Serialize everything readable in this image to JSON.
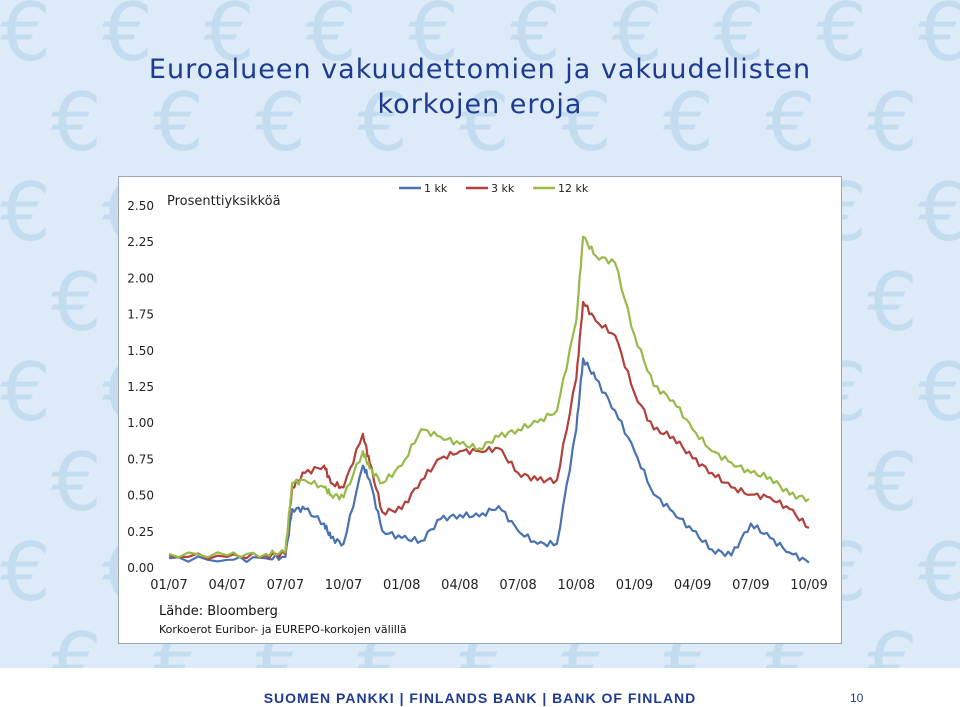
{
  "slide": {
    "title_line1": "Euroalueen vakuudettomien ja vakuudellisten",
    "title_line2": "korkojen eroja"
  },
  "background": {
    "symbol": "€",
    "symbol_color": "#c3dcf0"
  },
  "chart_data": {
    "type": "line",
    "title": "",
    "ylabel": "Prosenttiyksikköä",
    "xlabel": "",
    "ylim": [
      0.0,
      2.5
    ],
    "y_ticks": [
      "0.00",
      "0.25",
      "0.50",
      "0.75",
      "1.00",
      "1.25",
      "1.50",
      "1.75",
      "2.00",
      "2.25",
      "2.50"
    ],
    "x_ticks": [
      "01/07",
      "04/07",
      "07/07",
      "10/07",
      "01/08",
      "04/08",
      "07/08",
      "10/08",
      "01/09",
      "04/09",
      "07/09",
      "10/09"
    ],
    "grid": false,
    "legend_position": "top-right",
    "series": [
      {
        "name": "1 kk",
        "color": "#4a72b0",
        "points": [
          [
            "01/07",
            0.06
          ],
          [
            "04/07",
            0.05
          ],
          [
            "06/07",
            0.06
          ],
          [
            "07/07",
            0.07
          ],
          [
            "07/07b",
            0.4
          ],
          [
            "08/07",
            0.4
          ],
          [
            "09/07",
            0.3
          ],
          [
            "09/07b",
            0.2
          ],
          [
            "10/07",
            0.16
          ],
          [
            "11/07",
            0.7
          ],
          [
            "11/07b",
            0.6
          ],
          [
            "12/07",
            0.25
          ],
          [
            "01/08",
            0.2
          ],
          [
            "02/08",
            0.18
          ],
          [
            "03/08",
            0.33
          ],
          [
            "04/08",
            0.36
          ],
          [
            "05/08",
            0.35
          ],
          [
            "06/08",
            0.42
          ],
          [
            "07/08",
            0.25
          ],
          [
            "08/08",
            0.16
          ],
          [
            "09/08",
            0.16
          ],
          [
            "10/08",
            0.95
          ],
          [
            "10/08b",
            1.44
          ],
          [
            "11/08",
            1.3
          ],
          [
            "12/08",
            1.08
          ],
          [
            "01/09",
            0.8
          ],
          [
            "02/09",
            0.5
          ],
          [
            "03/09",
            0.38
          ],
          [
            "04/09",
            0.25
          ],
          [
            "05/09",
            0.12
          ],
          [
            "06/09",
            0.08
          ],
          [
            "07/09",
            0.3
          ],
          [
            "08/09",
            0.2
          ],
          [
            "09/09",
            0.1
          ],
          [
            "10/09",
            0.03
          ]
        ]
      },
      {
        "name": "3 kk",
        "color": "#b2403b",
        "points": [
          [
            "01/07",
            0.08
          ],
          [
            "04/07",
            0.07
          ],
          [
            "06/07",
            0.08
          ],
          [
            "07/07",
            0.09
          ],
          [
            "07/07b",
            0.55
          ],
          [
            "08/07",
            0.65
          ],
          [
            "09/07",
            0.7
          ],
          [
            "09/07b",
            0.58
          ],
          [
            "10/07",
            0.55
          ],
          [
            "11/07",
            0.92
          ],
          [
            "11/07b",
            0.72
          ],
          [
            "12/07",
            0.38
          ],
          [
            "01/08",
            0.4
          ],
          [
            "02/08",
            0.6
          ],
          [
            "03/08",
            0.75
          ],
          [
            "04/08",
            0.8
          ],
          [
            "05/08",
            0.8
          ],
          [
            "06/08",
            0.82
          ],
          [
            "07/08",
            0.65
          ],
          [
            "08/08",
            0.6
          ],
          [
            "09/08",
            0.6
          ],
          [
            "10/08",
            1.3
          ],
          [
            "10/08b",
            1.83
          ],
          [
            "11/08",
            1.7
          ],
          [
            "12/08",
            1.6
          ],
          [
            "01/09",
            1.2
          ],
          [
            "02/09",
            0.95
          ],
          [
            "03/09",
            0.9
          ],
          [
            "04/09",
            0.75
          ],
          [
            "05/09",
            0.65
          ],
          [
            "06/09",
            0.55
          ],
          [
            "07/09",
            0.5
          ],
          [
            "08/09",
            0.48
          ],
          [
            "09/09",
            0.4
          ],
          [
            "10/09",
            0.27
          ]
        ]
      },
      {
        "name": "12 kk",
        "color": "#97ba48",
        "points": [
          [
            "01/07",
            0.09
          ],
          [
            "04/07",
            0.08
          ],
          [
            "06/07",
            0.09
          ],
          [
            "07/07",
            0.1
          ],
          [
            "07/07b",
            0.58
          ],
          [
            "08/07",
            0.6
          ],
          [
            "09/07",
            0.55
          ],
          [
            "09/07b",
            0.5
          ],
          [
            "10/07",
            0.48
          ],
          [
            "11/07",
            0.8
          ],
          [
            "11/07b",
            0.68
          ],
          [
            "12/07",
            0.58
          ],
          [
            "01/08",
            0.7
          ],
          [
            "02/08",
            0.95
          ],
          [
            "03/08",
            0.9
          ],
          [
            "04/08",
            0.85
          ],
          [
            "05/08",
            0.82
          ],
          [
            "06/08",
            0.9
          ],
          [
            "07/08",
            0.95
          ],
          [
            "08/08",
            1.0
          ],
          [
            "09/08",
            1.08
          ],
          [
            "10/08",
            1.7
          ],
          [
            "10/08b",
            2.28
          ],
          [
            "11/08",
            2.15
          ],
          [
            "12/08",
            2.1
          ],
          [
            "01/09",
            1.6
          ],
          [
            "02/09",
            1.25
          ],
          [
            "03/09",
            1.15
          ],
          [
            "04/09",
            0.95
          ],
          [
            "05/09",
            0.8
          ],
          [
            "06/09",
            0.72
          ],
          [
            "07/09",
            0.65
          ],
          [
            "08/09",
            0.62
          ],
          [
            "09/09",
            0.5
          ],
          [
            "10/09",
            0.47
          ]
        ]
      }
    ]
  },
  "source": {
    "line1": "Lähde: Bloomberg",
    "line2": "Korkoerot Euribor- ja EUREPO-korkojen välillä"
  },
  "footer": {
    "bank_name": "SUOMEN PANKKI | FINLANDS BANK | BANK OF FINLAND",
    "page_number": "10"
  }
}
